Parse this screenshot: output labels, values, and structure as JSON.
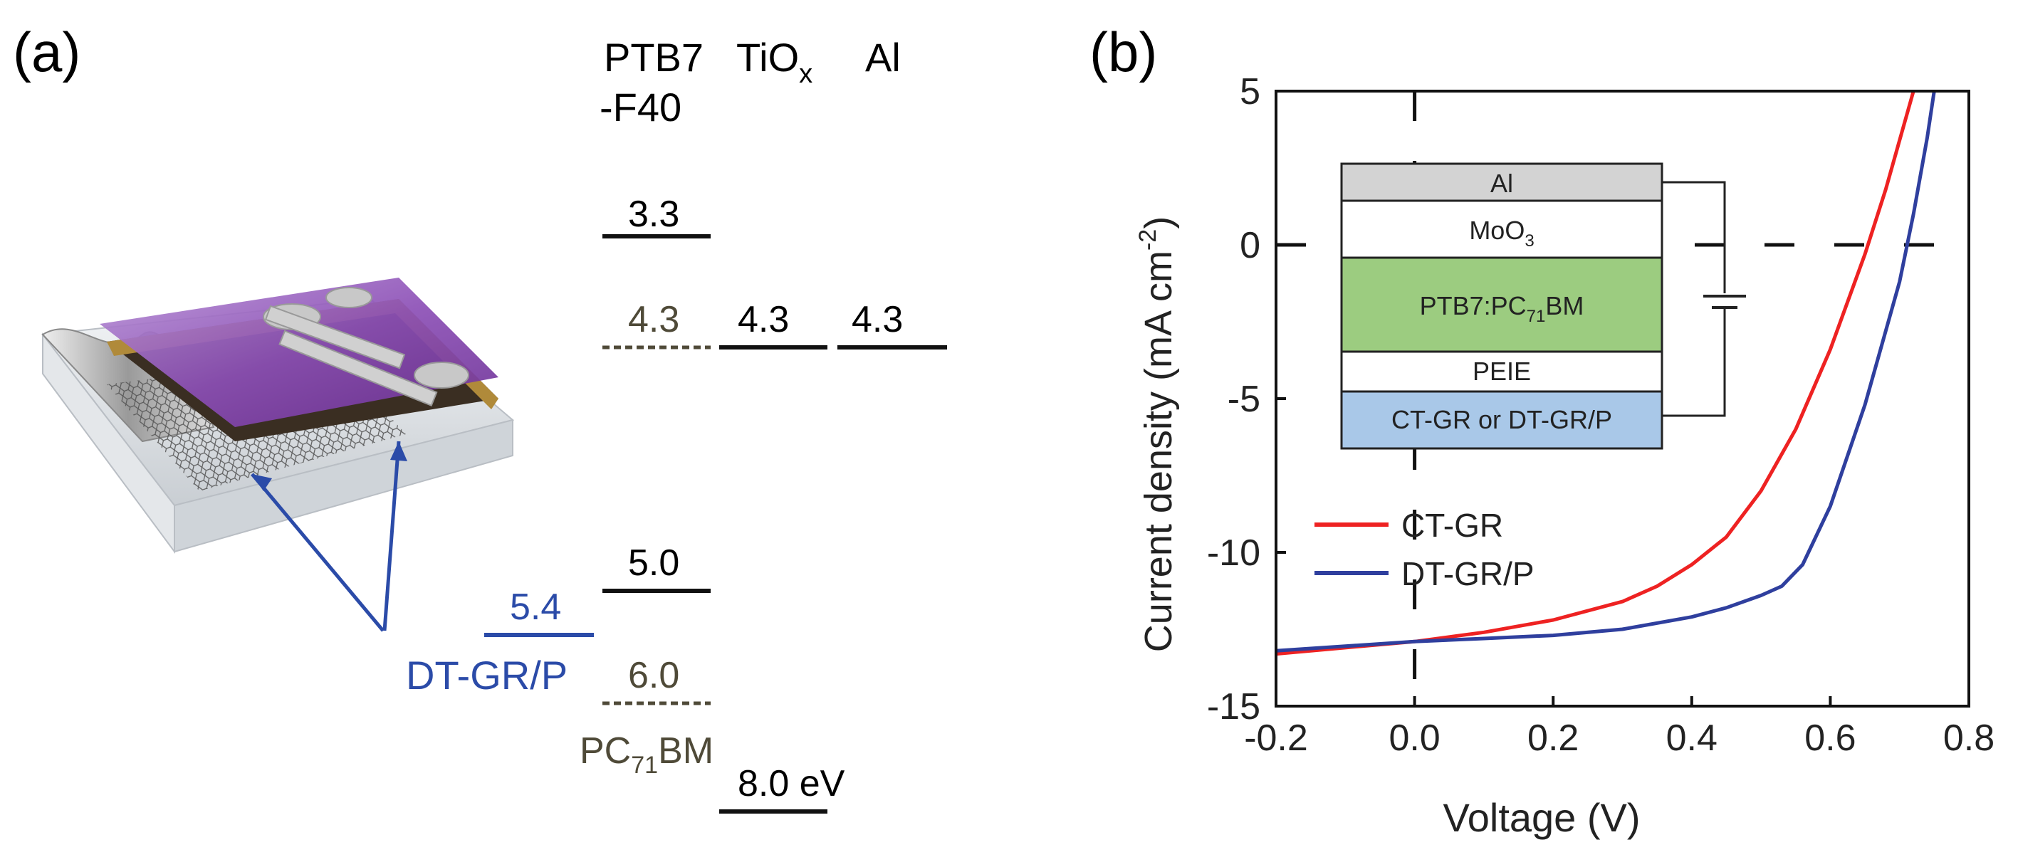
{
  "panel_a": {
    "label": "(a)",
    "columns": {
      "ptb7": [
        "PTB7",
        "-F40"
      ],
      "tiox": {
        "base": "TiO",
        "sub": "x"
      },
      "al": "Al"
    },
    "energy_levels": {
      "ptb7_lumo": "3.3",
      "pcbm_lumo": "4.3",
      "tiox_cb": "4.3",
      "al_wf": "4.3",
      "ptb7_homo": "5.0",
      "dtgr_wf": "5.4",
      "pcbm_homo": "6.0",
      "tiox_vb": "8.0 eV"
    },
    "pcbm_label": {
      "pre": "PC",
      "sub": "71",
      "post": "BM"
    },
    "dtgr_label": "DT-GR/P",
    "colors": {
      "blue": "#2b4ba8",
      "olive": "#4f4a38",
      "black": "#111111"
    }
  },
  "panel_b": {
    "label": "(b)",
    "inset_layers": {
      "al": "Al",
      "moo3": {
        "base": "MoO",
        "sub": "3"
      },
      "active": {
        "pre": "PTB7:PC",
        "sub": "71",
        "post": "BM"
      },
      "peie": "PEIE",
      "electrode": "CT-GR or DT-GR/P"
    },
    "inset_colors": {
      "al": "#d3d3d3",
      "moo3": "#ffffff",
      "active": "#9ccc80",
      "peie": "#ffffff",
      "electrode": "#a9c8e8"
    }
  },
  "chart_data": {
    "type": "line",
    "xlabel": "Voltage (V)",
    "ylabel": {
      "main": "Current density (mA cm",
      "sup": "-2",
      "close": ")"
    },
    "xlim": [
      -0.2,
      0.8
    ],
    "ylim": [
      -15,
      5
    ],
    "xticks": [
      "-0.2",
      "0.0",
      "0.2",
      "0.4",
      "0.6",
      "0.8"
    ],
    "yticks": [
      "5",
      "0",
      "-5",
      "-10",
      "-15"
    ],
    "xtick_values": [
      -0.2,
      0.0,
      0.2,
      0.4,
      0.6,
      0.8
    ],
    "ytick_values": [
      5,
      0,
      -5,
      -10,
      -15
    ],
    "reference_lines": {
      "x": 0,
      "y": 0
    },
    "legend_position": "lower-left",
    "series": [
      {
        "name": "CT-GR",
        "color": "#ee2222",
        "x": [
          -0.2,
          -0.1,
          0.0,
          0.1,
          0.2,
          0.3,
          0.35,
          0.4,
          0.45,
          0.5,
          0.55,
          0.6,
          0.65,
          0.68,
          0.7,
          0.72
        ],
        "y": [
          -13.3,
          -13.1,
          -12.9,
          -12.6,
          -12.2,
          -11.6,
          -11.1,
          -10.4,
          -9.5,
          -8.0,
          -6.0,
          -3.4,
          -0.3,
          1.8,
          3.4,
          5.0
        ]
      },
      {
        "name": "DT-GR/P",
        "color": "#2f3f9e",
        "x": [
          -0.2,
          -0.1,
          0.0,
          0.1,
          0.2,
          0.3,
          0.4,
          0.45,
          0.5,
          0.53,
          0.56,
          0.6,
          0.65,
          0.7,
          0.72,
          0.74,
          0.75
        ],
        "y": [
          -13.2,
          -13.05,
          -12.9,
          -12.8,
          -12.7,
          -12.5,
          -12.1,
          -11.8,
          -11.4,
          -11.1,
          -10.4,
          -8.5,
          -5.2,
          -1.2,
          1.0,
          3.5,
          5.0
        ]
      }
    ]
  }
}
